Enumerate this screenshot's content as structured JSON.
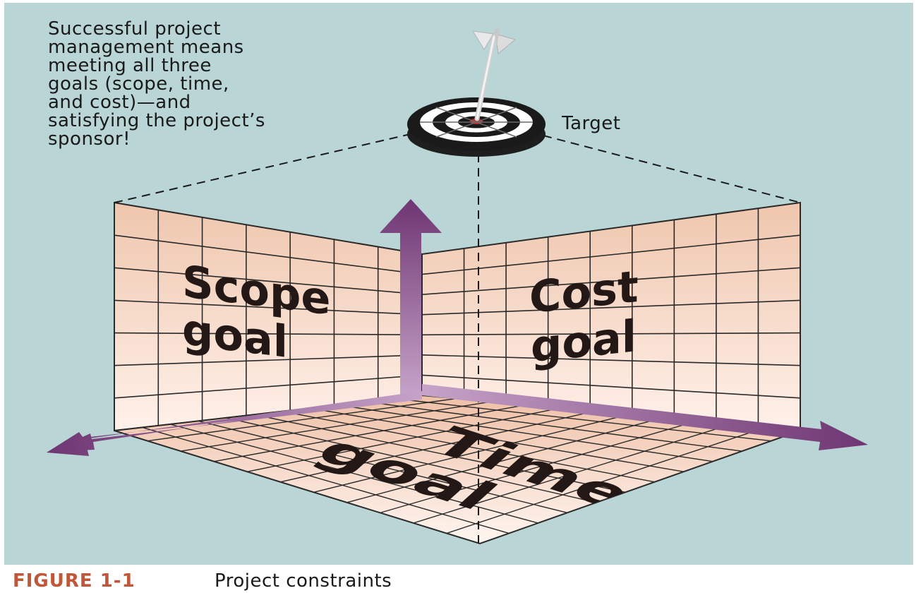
{
  "note": {
    "lines": [
      "Successful project",
      "management means",
      "meeting all three",
      "goals (scope, time,",
      "and cost)—and",
      "satisfying the project’s",
      "sponsor!"
    ]
  },
  "target": {
    "label": "Target"
  },
  "goals": {
    "scope": [
      "Scope",
      "goal"
    ],
    "cost": [
      "Cost",
      "goal"
    ],
    "time": [
      "Time",
      "goal"
    ]
  },
  "caption": {
    "number": "FIGURE 1-1",
    "title": "Project constraints"
  },
  "colors": {
    "background": "#b9d5d5",
    "wall_top": "#efc6ad",
    "wall_bottom": "#fff1ea",
    "arrow": "#6e3572",
    "caption_accent": "#c0563a"
  },
  "icons": [
    "dart-icon",
    "dartboard-icon"
  ]
}
